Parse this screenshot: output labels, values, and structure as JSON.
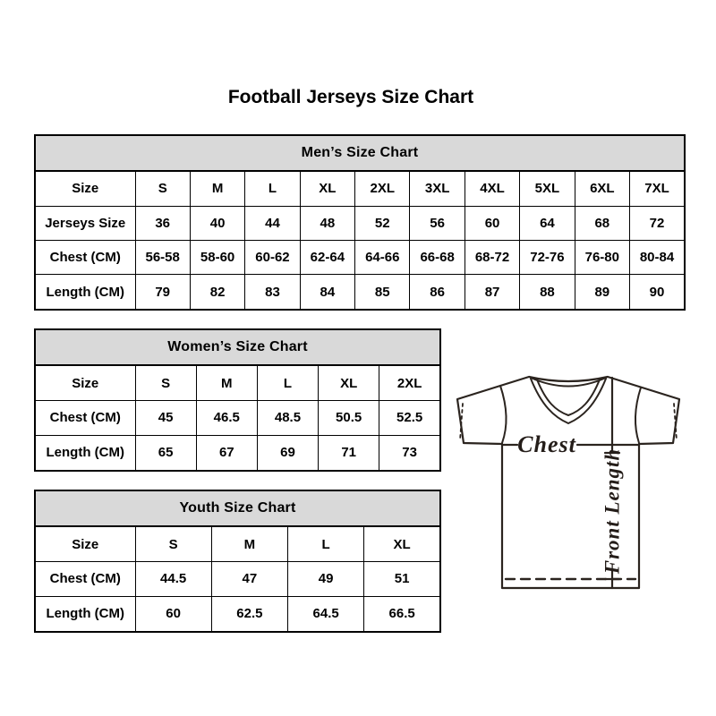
{
  "page_title": "Football Jerseys Size Chart",
  "chart_data": [
    {
      "type": "table",
      "title": "Men’s Size Chart",
      "rows": [
        [
          "Size",
          "S",
          "M",
          "L",
          "XL",
          "2XL",
          "3XL",
          "4XL",
          "5XL",
          "6XL",
          "7XL"
        ],
        [
          "Jerseys Size",
          "36",
          "40",
          "44",
          "48",
          "52",
          "56",
          "60",
          "64",
          "68",
          "72"
        ],
        [
          "Chest (CM)",
          "56-58",
          "58-60",
          "60-62",
          "62-64",
          "64-66",
          "66-68",
          "68-72",
          "72-76",
          "76-80",
          "80-84"
        ],
        [
          "Length (CM)",
          "79",
          "82",
          "83",
          "84",
          "85",
          "86",
          "87",
          "88",
          "89",
          "90"
        ]
      ]
    },
    {
      "type": "table",
      "title": "Women’s Size Chart",
      "rows": [
        [
          "Size",
          "S",
          "M",
          "L",
          "XL",
          "2XL"
        ],
        [
          "Chest (CM)",
          "45",
          "46.5",
          "48.5",
          "50.5",
          "52.5"
        ],
        [
          "Length (CM)",
          "65",
          "67",
          "69",
          "71",
          "73"
        ]
      ]
    },
    {
      "type": "table",
      "title": "Youth Size Chart",
      "rows": [
        [
          "Size",
          "S",
          "M",
          "L",
          "XL"
        ],
        [
          "Chest (CM)",
          "44.5",
          "47",
          "49",
          "51"
        ],
        [
          "Length (CM)",
          "60",
          "62.5",
          "64.5",
          "66.5"
        ]
      ]
    }
  ],
  "diagram": {
    "chest_label": "Chest",
    "front_length_label": "Front Length"
  },
  "colors": {
    "table_header_bg": "#d9d9d9",
    "table_border": "#000000",
    "jersey_line": "#2b241f",
    "text": "#000000"
  }
}
